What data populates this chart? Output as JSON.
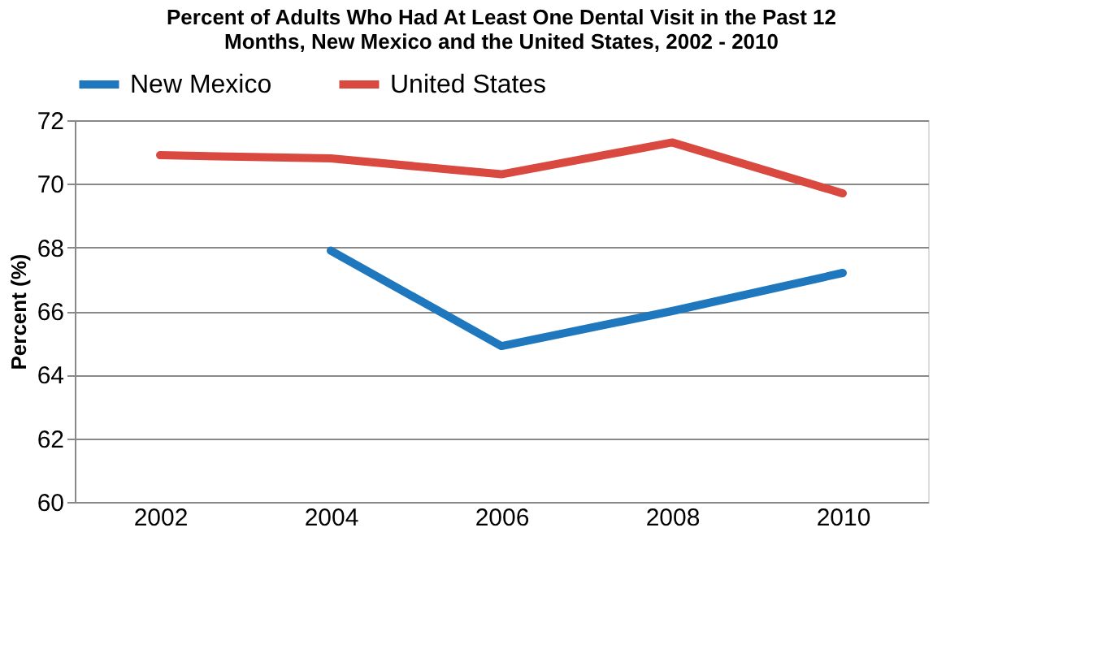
{
  "chart_data": {
    "type": "line",
    "title": "Percent of Adults Who Had At Least One Dental Visit in the Past 12 Months, New Mexico and the United States, 2002 - 2010",
    "ylabel": "Percent (%)",
    "categories": [
      "2002",
      "2004",
      "2006",
      "2008",
      "2010"
    ],
    "series": [
      {
        "name": "New Mexico",
        "color": "#1f78be",
        "values": [
          null,
          67.9,
          64.9,
          66.0,
          67.2
        ]
      },
      {
        "name": "United States",
        "color": "#d9493f",
        "values": [
          70.9,
          70.8,
          70.3,
          71.3,
          69.7
        ]
      }
    ],
    "ylim": [
      60,
      72
    ],
    "yticks": [
      60,
      62,
      64,
      66,
      68,
      70,
      72
    ],
    "grid": "y",
    "legend": "top",
    "marker": "none",
    "line_style": "solid"
  }
}
